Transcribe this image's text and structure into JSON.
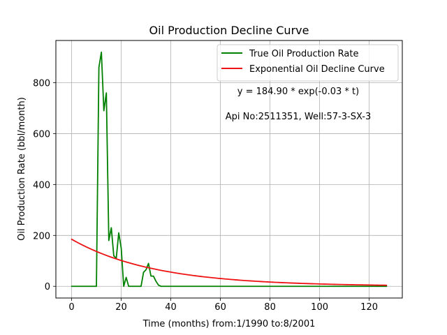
{
  "chart_data": {
    "type": "line",
    "title": "Oil Production Decline Curve",
    "xlabel": "Time (months) from:1/1990 to:8/2001",
    "ylabel": "Oil Production Rate (bbl/month)",
    "xlim": [
      -6.35,
      133.35
    ],
    "ylim": [
      -46,
      966
    ],
    "xticks": [
      0,
      20,
      40,
      60,
      80,
      100,
      120
    ],
    "yticks": [
      0,
      200,
      400,
      600,
      800
    ],
    "grid": true,
    "legend_position": "top-right",
    "annotations": [
      {
        "text": "y = 184.90 * exp(-0.03 * t)",
        "x": 91,
        "y": 762
      },
      {
        "text": "Api No:2511351, Well:57-3-SX-3",
        "x": 91,
        "y": 663
      }
    ],
    "series": [
      {
        "name": "True Oil Production Rate",
        "color": "#008000",
        "x": [
          0,
          1,
          2,
          3,
          4,
          5,
          6,
          7,
          8,
          9,
          10,
          11,
          12,
          13,
          14,
          15,
          16,
          17,
          18,
          19,
          20,
          21,
          22,
          23,
          24,
          25,
          26,
          27,
          28,
          29,
          30,
          31,
          32,
          33,
          34,
          35,
          36,
          37,
          38,
          39,
          40,
          45,
          50,
          60,
          70,
          80,
          90,
          100,
          110,
          120,
          127
        ],
        "y": [
          0,
          0,
          0,
          0,
          0,
          0,
          0,
          0,
          0,
          0,
          0,
          860,
          920,
          690,
          760,
          180,
          230,
          120,
          110,
          210,
          150,
          0,
          35,
          0,
          0,
          0,
          0,
          0,
          0,
          55,
          65,
          90,
          40,
          40,
          20,
          5,
          0,
          0,
          0,
          0,
          0,
          0,
          0,
          0,
          0,
          0,
          0,
          0,
          0,
          0,
          0
        ]
      },
      {
        "name": "Exponential Oil Decline Curve",
        "color": "#ee1111",
        "function": {
          "a": 184.9,
          "b": 0.03,
          "x_from": 0,
          "x_to": 127
        }
      }
    ]
  }
}
